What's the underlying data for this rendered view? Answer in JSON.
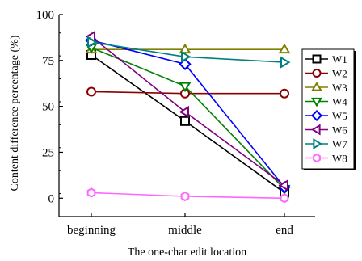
{
  "chart_data": {
    "type": "line",
    "title": "",
    "xlabel": "The one-char edit location",
    "ylabel": "Content difference percentage (%)",
    "categories": [
      "beginning",
      "middle",
      "end"
    ],
    "ylim": [
      -10,
      100
    ],
    "yticks": [
      0,
      25,
      50,
      75,
      100
    ],
    "grid": false,
    "legend_position": "right",
    "series": [
      {
        "name": "W1",
        "values": [
          78,
          42,
          3
        ],
        "color": "#000000",
        "marker": "square"
      },
      {
        "name": "W2",
        "values": [
          58,
          57,
          57
        ],
        "color": "#8b0000",
        "marker": "circle"
      },
      {
        "name": "W3",
        "values": [
          81,
          81,
          81
        ],
        "color": "#808000",
        "marker": "triangle-up"
      },
      {
        "name": "W4",
        "values": [
          82,
          61,
          5
        ],
        "color": "#008000",
        "marker": "triangle-down"
      },
      {
        "name": "W5",
        "values": [
          86,
          73,
          6
        ],
        "color": "#0000ff",
        "marker": "diamond"
      },
      {
        "name": "W6",
        "values": [
          88,
          47,
          7
        ],
        "color": "#800080",
        "marker": "triangle-left"
      },
      {
        "name": "W7",
        "values": [
          85,
          77,
          74
        ],
        "color": "#008080",
        "marker": "triangle-right"
      },
      {
        "name": "W8",
        "values": [
          3,
          1,
          0
        ],
        "color": "#ff66ff",
        "marker": "hexagon"
      }
    ]
  }
}
